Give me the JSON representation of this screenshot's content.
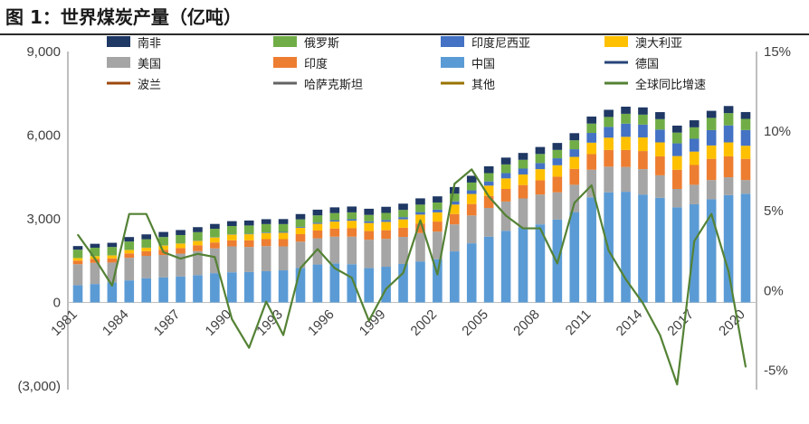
{
  "chart_data": {
    "type": "bar",
    "title": "图 1：世界煤炭产量（亿吨）",
    "x": [
      1981,
      1982,
      1983,
      1984,
      1985,
      1986,
      1987,
      1988,
      1989,
      1990,
      1991,
      1992,
      1993,
      1994,
      1995,
      1996,
      1997,
      1998,
      1999,
      2000,
      2001,
      2002,
      2003,
      2004,
      2005,
      2006,
      2007,
      2008,
      2009,
      2010,
      2011,
      2012,
      2013,
      2014,
      2015,
      2016,
      2017,
      2018,
      2019,
      2020
    ],
    "x_tick_labels": [
      "1981",
      "1984",
      "1987",
      "1990",
      "1993",
      "1996",
      "1999",
      "2002",
      "2005",
      "2008",
      "2011",
      "2014",
      "2017",
      "2020"
    ],
    "ylim": [
      -3000,
      9000
    ],
    "y_tick_labels": [
      "9,000",
      "6,000",
      "3,000",
      "0",
      "(3,000)"
    ],
    "y2lim": [
      -6,
      15
    ],
    "y2_tick_labels": [
      "15%",
      "10%",
      "5%",
      "0%",
      "-5%"
    ],
    "negative_tick_color": "#ff0000",
    "legend_placement": "top",
    "stack_order": [
      "中国",
      "美国",
      "印度",
      "澳大利亚",
      "印度尼西亚",
      "俄罗斯",
      "南非",
      "德国",
      "波兰",
      "哈萨克斯坦",
      "其他"
    ],
    "series": [
      {
        "name": "南非",
        "color": "#1f3864",
        "values": [
          130,
          140,
          150,
          160,
          175,
          180,
          180,
          180,
          175,
          175,
          178,
          175,
          180,
          190,
          205,
          205,
          210,
          220,
          220,
          225,
          225,
          220,
          238,
          243,
          245,
          245,
          247,
          250,
          250,
          254,
          253,
          258,
          256,
          260,
          252,
          250,
          253,
          253,
          254,
          245
        ]
      },
      {
        "name": "俄罗斯",
        "color": "#70ad47",
        "values": [
          300,
          300,
          300,
          300,
          300,
          300,
          300,
          300,
          300,
          300,
          300,
          300,
          280,
          270,
          262,
          255,
          245,
          230,
          250,
          258,
          268,
          255,
          275,
          280,
          298,
          310,
          315,
          325,
          300,
          322,
          335,
          355,
          352,
          358,
          373,
          386,
          410,
          440,
          441,
          401
        ]
      },
      {
        "name": "印度尼西亚",
        "color": "#4472c4",
        "values": [
          2,
          3,
          4,
          5,
          6,
          7,
          7,
          10,
          10,
          10,
          15,
          20,
          30,
          30,
          40,
          50,
          55,
          60,
          70,
          80,
          90,
          100,
          115,
          130,
          150,
          190,
          210,
          220,
          250,
          275,
          350,
          387,
          474,
          458,
          461,
          456,
          461,
          550,
          610,
          563
        ]
      },
      {
        "name": "澳大利亚",
        "color": "#ffc000",
        "values": [
          90,
          100,
          105,
          120,
          120,
          150,
          160,
          160,
          180,
          200,
          215,
          220,
          230,
          230,
          240,
          250,
          270,
          290,
          300,
          300,
          320,
          330,
          340,
          360,
          370,
          380,
          380,
          400,
          410,
          430,
          410,
          440,
          470,
          490,
          500,
          490,
          480,
          480,
          500,
          470
        ]
      },
      {
        "name": "美国",
        "color": "#a5a5a5",
        "values": [
          750,
          760,
          710,
          810,
          800,
          800,
          820,
          860,
          890,
          930,
          900,
          900,
          860,
          940,
          940,
          960,
          990,
          1020,
          1000,
          970,
          1020,
          990,
          970,
          1000,
          1030,
          1050,
          1040,
          1070,
          980,
          980,
          990,
          920,
          890,
          910,
          810,
          660,
          700,
          690,
          640,
          490
        ]
      },
      {
        "name": "印度",
        "color": "#ed7d31",
        "values": [
          130,
          140,
          150,
          160,
          170,
          190,
          200,
          210,
          210,
          220,
          240,
          250,
          260,
          270,
          280,
          290,
          300,
          310,
          310,
          330,
          340,
          360,
          370,
          410,
          430,
          450,
          480,
          510,
          560,
          570,
          560,
          600,
          610,
          650,
          680,
          690,
          710,
          760,
          750,
          760
        ]
      },
      {
        "name": "中国",
        "color": "#5b9bd5",
        "values": [
          620,
          660,
          720,
          790,
          870,
          900,
          930,
          980,
          1050,
          1080,
          1090,
          1120,
          1150,
          1240,
          1360,
          1400,
          1370,
          1230,
          1280,
          1380,
          1470,
          1550,
          1830,
          2120,
          2360,
          2570,
          2690,
          2800,
          2970,
          3240,
          3770,
          3950,
          3970,
          3870,
          3750,
          3410,
          3520,
          3700,
          3850,
          3900
        ]
      },
      {
        "name": "德国",
        "color": "#264478",
        "values": [
          0,
          0,
          0,
          0,
          0,
          0,
          0,
          0,
          0,
          0,
          0,
          0,
          0,
          0,
          0,
          0,
          0,
          0,
          0,
          0,
          0,
          0,
          0,
          0,
          0,
          0,
          0,
          0,
          0,
          0,
          0,
          0,
          0,
          0,
          0,
          0,
          0,
          0,
          0,
          0
        ]
      },
      {
        "name": "波兰",
        "color": "#9e480e",
        "values": [
          0,
          0,
          0,
          0,
          0,
          0,
          0,
          0,
          0,
          0,
          0,
          0,
          0,
          0,
          0,
          0,
          0,
          0,
          0,
          0,
          0,
          0,
          0,
          0,
          0,
          0,
          0,
          0,
          0,
          0,
          0,
          0,
          0,
          0,
          0,
          0,
          0,
          0,
          0,
          0
        ]
      },
      {
        "name": "哈萨克斯坦",
        "color": "#636363",
        "values": [
          0,
          0,
          0,
          0,
          0,
          0,
          0,
          0,
          0,
          0,
          0,
          0,
          0,
          0,
          0,
          0,
          0,
          0,
          0,
          0,
          0,
          0,
          0,
          0,
          0,
          0,
          0,
          0,
          0,
          0,
          0,
          0,
          0,
          0,
          0,
          0,
          0,
          0,
          0,
          0
        ]
      },
      {
        "name": "其他",
        "color": "#997300",
        "values": [
          0,
          0,
          0,
          0,
          0,
          0,
          0,
          0,
          0,
          0,
          0,
          0,
          0,
          0,
          0,
          0,
          0,
          0,
          0,
          0,
          0,
          0,
          0,
          0,
          0,
          0,
          0,
          0,
          0,
          0,
          0,
          0,
          0,
          0,
          0,
          0,
          0,
          0,
          0,
          0
        ]
      }
    ],
    "line_series": {
      "name": "全球同比增速",
      "color": "#548235",
      "axis": "right",
      "unit": "%",
      "values": [
        3.5,
        2.0,
        0.3,
        4.8,
        4.8,
        2.4,
        2.0,
        2.3,
        2.1,
        -1.8,
        -3.6,
        -0.7,
        -2.8,
        1.4,
        2.6,
        1.4,
        0.8,
        -1.9,
        0.1,
        1.1,
        4.4,
        1.0,
        6.7,
        7.6,
        5.9,
        4.7,
        3.9,
        3.9,
        1.7,
        5.5,
        6.6,
        2.5,
        0.7,
        -0.8,
        -2.8,
        -5.9,
        3.1,
        4.8,
        1.2,
        -4.8
      ]
    }
  },
  "legend_items": [
    {
      "label": "南非",
      "kind": "box",
      "color": "#1f3864"
    },
    {
      "label": "俄罗斯",
      "kind": "box",
      "color": "#70ad47"
    },
    {
      "label": "印度尼西亚",
      "kind": "box",
      "color": "#4472c4"
    },
    {
      "label": "澳大利亚",
      "kind": "box",
      "color": "#ffc000"
    },
    {
      "label": "美国",
      "kind": "box",
      "color": "#a5a5a5"
    },
    {
      "label": "印度",
      "kind": "box",
      "color": "#ed7d31"
    },
    {
      "label": "中国",
      "kind": "box",
      "color": "#5b9bd5"
    },
    {
      "label": "德国",
      "kind": "line",
      "color": "#264478"
    },
    {
      "label": "波兰",
      "kind": "line",
      "color": "#9e480e"
    },
    {
      "label": "哈萨克斯坦",
      "kind": "line",
      "color": "#636363"
    },
    {
      "label": "其他",
      "kind": "line",
      "color": "#997300"
    },
    {
      "label": "全球同比增速",
      "kind": "line",
      "color": "#548235"
    }
  ]
}
